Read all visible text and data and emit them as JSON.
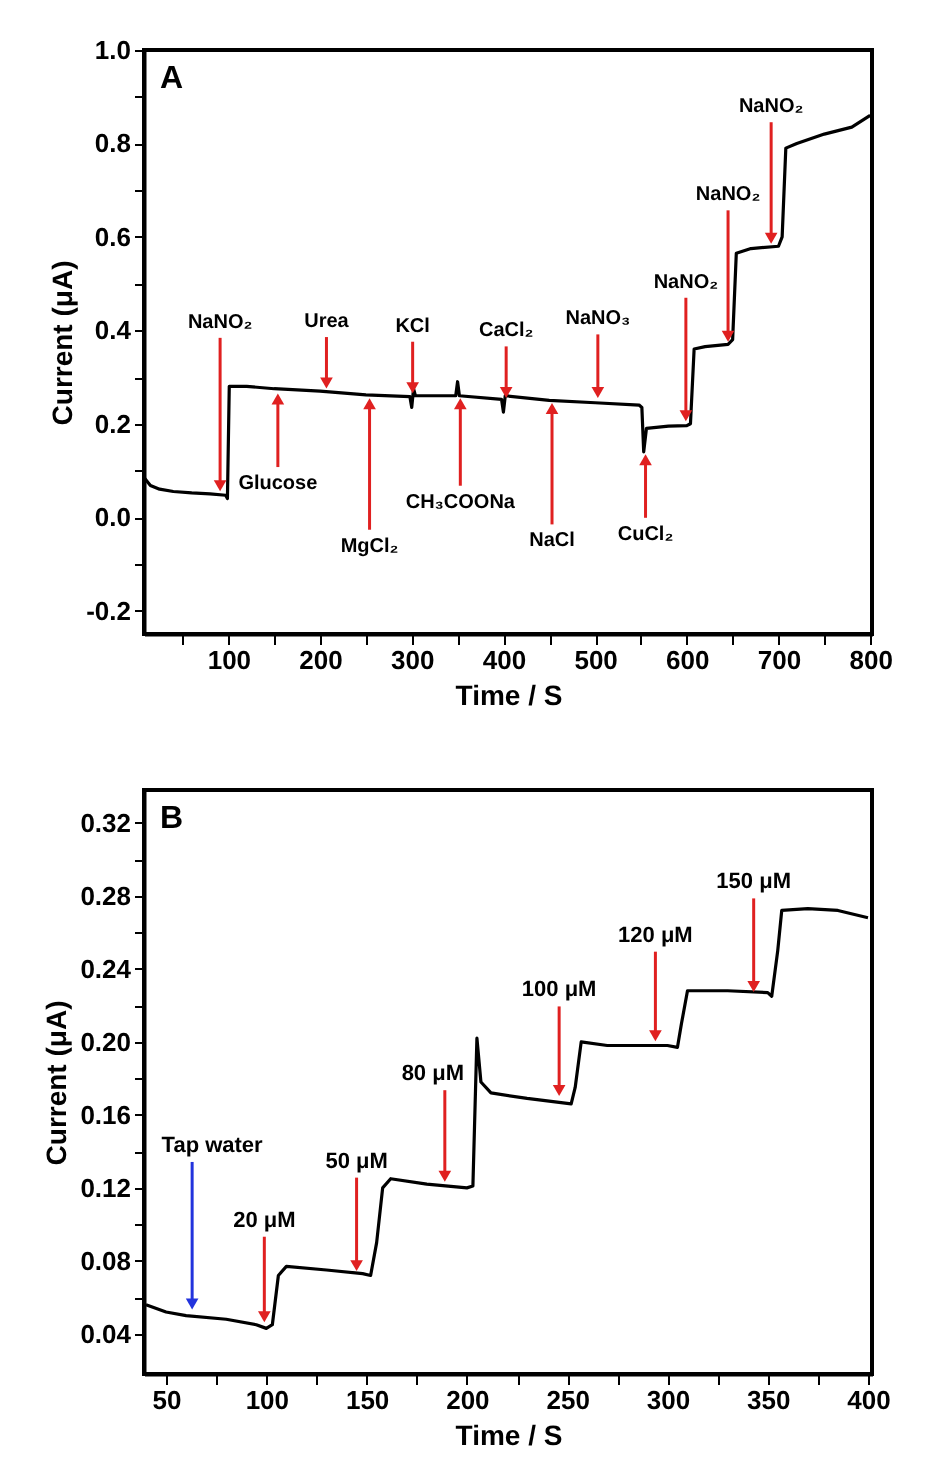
{
  "chart_data": [
    {
      "type": "line",
      "title": "A",
      "xlabel": "Time / S",
      "ylabel": "Current (μA)",
      "color": "#000000",
      "x": [
        8,
        15,
        25,
        40,
        60,
        80,
        97,
        99,
        101,
        120,
        150,
        200,
        250,
        298,
        300,
        302,
        304,
        348,
        350,
        352,
        398,
        400,
        402,
        450,
        500,
        548,
        551,
        553,
        556,
        580,
        600,
        604,
        608,
        620,
        645,
        650,
        654,
        670,
        700,
        704,
        708,
        720,
        750,
        780,
        800
      ],
      "values": [
        0.085,
        0.068,
        0.06,
        0.055,
        0.052,
        0.05,
        0.047,
        0.04,
        0.28,
        0.28,
        0.275,
        0.27,
        0.262,
        0.258,
        0.235,
        0.275,
        0.26,
        0.26,
        0.29,
        0.26,
        0.252,
        0.225,
        0.26,
        0.25,
        0.245,
        0.24,
        0.235,
        0.14,
        0.19,
        0.195,
        0.196,
        0.2,
        0.36,
        0.365,
        0.37,
        0.38,
        0.565,
        0.575,
        0.58,
        0.6,
        0.79,
        0.8,
        0.82,
        0.835,
        0.86
      ],
      "xlim": [
        8,
        802
      ],
      "xticks": [
        {
          "value": 50,
          "label": null
        },
        100,
        {
          "value": 150,
          "label": null
        },
        200,
        {
          "value": 250,
          "label": null
        },
        300,
        {
          "value": 350,
          "label": null
        },
        400,
        {
          "value": 450,
          "label": null
        },
        500,
        {
          "value": 550,
          "label": null
        },
        600,
        {
          "value": 650,
          "label": null
        },
        700,
        {
          "value": 750,
          "label": null
        },
        800
      ],
      "ylim": [
        -0.25,
        1.0
      ],
      "yticks": [
        -0.2,
        {
          "value": -0.1,
          "label": null
        },
        {
          "value": 0,
          "label": "0.0"
        },
        {
          "value": 0.1,
          "label": null
        },
        0.2,
        {
          "value": 0.3,
          "label": null
        },
        0.4,
        {
          "value": 0.5,
          "label": null
        },
        0.6,
        {
          "value": 0.7,
          "label": null
        },
        0.8,
        {
          "value": 0.9,
          "label": null
        },
        {
          "value": 1,
          "label": "1.0"
        }
      ],
      "annotations": [
        {
          "text": "NaNO₂",
          "x": 91,
          "y": 0.05
        },
        {
          "text": "Glucose",
          "x": 154,
          "y": 0.27
        },
        {
          "text": "Urea",
          "x": 207,
          "y": 0.27
        },
        {
          "text": "MgCl₂",
          "x": 254,
          "y": 0.26
        },
        {
          "text": "KCl",
          "x": 301,
          "y": 0.26
        },
        {
          "text": "CH₃COONa",
          "x": 353,
          "y": 0.26
        },
        {
          "text": "CaCl₂",
          "x": 403,
          "y": 0.25
        },
        {
          "text": "NaCl",
          "x": 453,
          "y": 0.25
        },
        {
          "text": "NaNO₃",
          "x": 503,
          "y": 0.25
        },
        {
          "text": "CuCl₂",
          "x": 555,
          "y": 0.14
        },
        {
          "text": "NaNO₂",
          "x": 599,
          "y": 0.2
        },
        {
          "text": "NaNO₂",
          "x": 645,
          "y": 0.37
        },
        {
          "text": "NaNO₂",
          "x": 692,
          "y": 0.58
        }
      ]
    },
    {
      "type": "line",
      "title": "B",
      "xlabel": "Time / S",
      "ylabel": "Current (μA)",
      "color": "#000000",
      "x": [
        40,
        50,
        60,
        80,
        95,
        100,
        103,
        106,
        110,
        130,
        148,
        152,
        155,
        158,
        162,
        180,
        200,
        203,
        205,
        207,
        212,
        230,
        252,
        254,
        257,
        270,
        300,
        305,
        307,
        310,
        330,
        350,
        352,
        355,
        357,
        370,
        385,
        400
      ],
      "values": [
        0.056,
        0.052,
        0.05,
        0.048,
        0.045,
        0.043,
        0.045,
        0.072,
        0.077,
        0.075,
        0.073,
        0.072,
        0.09,
        0.12,
        0.125,
        0.122,
        0.12,
        0.121,
        0.202,
        0.178,
        0.172,
        0.169,
        0.166,
        0.175,
        0.2,
        0.198,
        0.198,
        0.197,
        0.21,
        0.228,
        0.228,
        0.227,
        0.225,
        0.25,
        0.272,
        0.273,
        0.272,
        0.268
      ],
      "xlim": [
        39,
        402
      ],
      "xticks": [
        50,
        {
          "value": 75,
          "label": null
        },
        100,
        {
          "value": 125,
          "label": null
        },
        150,
        {
          "value": 175,
          "label": null
        },
        200,
        {
          "value": 225,
          "label": null
        },
        250,
        {
          "value": 275,
          "label": null
        },
        300,
        {
          "value": 325,
          "label": null
        },
        350,
        {
          "value": 375,
          "label": null
        },
        400
      ],
      "ylim": [
        0.018,
        0.338
      ],
      "yticks": [
        0.04,
        {
          "value": 0.06,
          "label": null
        },
        0.08,
        {
          "value": 0.1,
          "label": null
        },
        0.12,
        {
          "value": 0.14,
          "label": null
        },
        0.16,
        {
          "value": 0.18,
          "label": null
        },
        {
          "value": 0.2,
          "label": "0.20"
        },
        {
          "value": 0.22,
          "label": null
        },
        0.24,
        {
          "value": 0.26,
          "label": null
        },
        0.28,
        {
          "value": 0.3,
          "label": null
        },
        0.32
      ],
      "annotations": [
        {
          "text": "Tap water",
          "x": 63,
          "y": 0.052
        },
        {
          "text": "20 μM",
          "x": 99,
          "y": 0.045
        },
        {
          "text": "50 μM",
          "x": 145,
          "y": 0.073
        },
        {
          "text": "80 μM",
          "x": 189,
          "y": 0.122
        },
        {
          "text": "100 μM",
          "x": 246,
          "y": 0.169
        },
        {
          "text": "120 μM",
          "x": 294,
          "y": 0.199
        },
        {
          "text": "150 μM",
          "x": 343,
          "y": 0.226
        }
      ]
    }
  ]
}
